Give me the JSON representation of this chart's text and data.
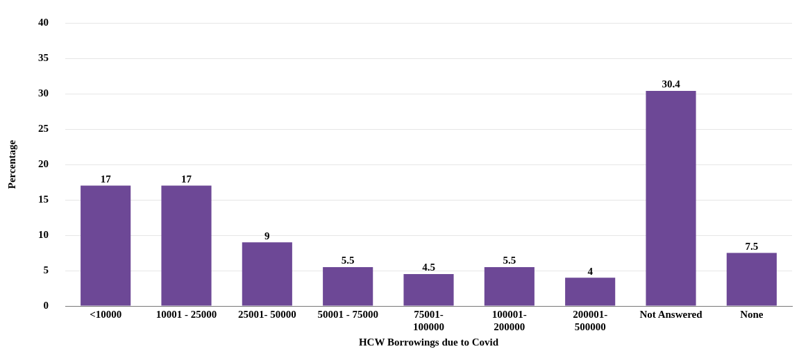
{
  "chart_data": {
    "type": "bar",
    "xlabel": "HCW Borrowings due to Covid",
    "ylabel": "Percentage",
    "categories": [
      "<10000",
      "10001 - 25000",
      "25001- 50000",
      "50001 - 75000",
      "75001-100000",
      "100001-200000",
      "200001-500000",
      "Not Answered",
      "None"
    ],
    "values": [
      17,
      17,
      9,
      5.5,
      4.5,
      5.5,
      4,
      30.4,
      7.5
    ],
    "color": "#6d4896",
    "ylim": [
      0,
      40
    ],
    "yticks": [
      0,
      5,
      10,
      15,
      20,
      25,
      30,
      35,
      40
    ],
    "grid": "y",
    "data_labels": true,
    "legend": false
  }
}
